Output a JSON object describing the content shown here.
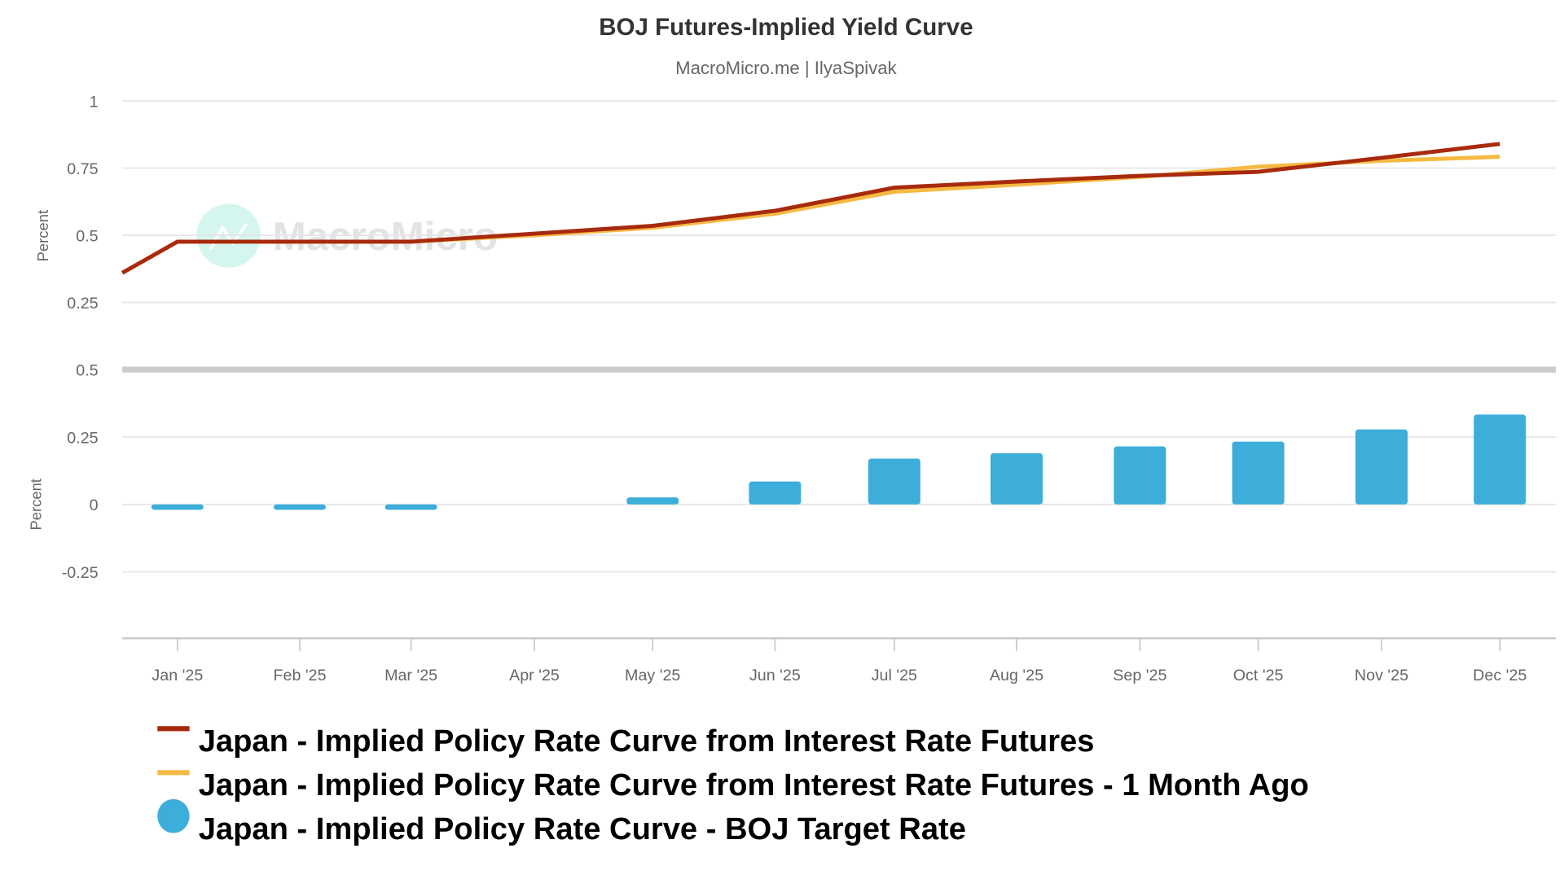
{
  "chart_data": {
    "type": "line+bar",
    "title": "BOJ Futures-Implied Yield Curve",
    "subtitle": "MacroMicro.me | IlyaSpivak",
    "watermark": "MacroMicro",
    "x_ticks": [
      "Jan '25",
      "Feb '25",
      "Mar '25",
      "Apr '25",
      "May '25",
      "Jun '25",
      "Jul '25",
      "Aug '25",
      "Sep '25",
      "Oct '25",
      "Nov '25",
      "Dec '25"
    ],
    "panels": [
      {
        "ylabel": "Percent",
        "ylim": [
          0,
          1
        ],
        "y_ticks": [
          "1",
          "0.75",
          "0.5",
          "0.25"
        ],
        "y_tick_values": [
          1,
          0.75,
          0.5,
          0.25
        ],
        "start_value_before_jan": {
          "series_0": 0.36,
          "series_1": 0.36
        },
        "series": [
          {
            "name": "Japan - Implied Policy Rate Curve from Interest Rate Futures",
            "type": "line",
            "color": "#a82a0c",
            "values": [
              0.476,
              0.476,
              0.476,
              0.506,
              0.535,
              0.591,
              0.677,
              0.7,
              0.721,
              0.736,
              0.788,
              0.84
            ]
          },
          {
            "name": "Japan - Implied Policy Rate Curve from Interest Rate Futures - 1 Month Ago",
            "type": "line",
            "color": "#f6b942",
            "values": [
              0.476,
              0.476,
              0.476,
              0.5,
              0.528,
              0.58,
              0.662,
              0.688,
              0.717,
              0.755,
              0.777,
              0.792
            ]
          }
        ]
      },
      {
        "ylabel": "Percent",
        "ylim": [
          -0.5,
          0.5
        ],
        "y_ticks": [
          "0.5",
          "0.25",
          "0",
          "-0.25"
        ],
        "y_tick_values": [
          0.5,
          0.25,
          0,
          -0.25
        ],
        "series": [
          {
            "name": "Japan - Implied Policy Rate Curve - BOJ Target Rate",
            "type": "bar",
            "color": "#3caed9",
            "values": [
              -0.02,
              -0.02,
              -0.02,
              0,
              0.026,
              0.085,
              0.17,
              0.19,
              0.215,
              0.233,
              0.278,
              0.333
            ]
          }
        ]
      }
    ],
    "grid": true,
    "legend_placement": "bottom-left"
  }
}
